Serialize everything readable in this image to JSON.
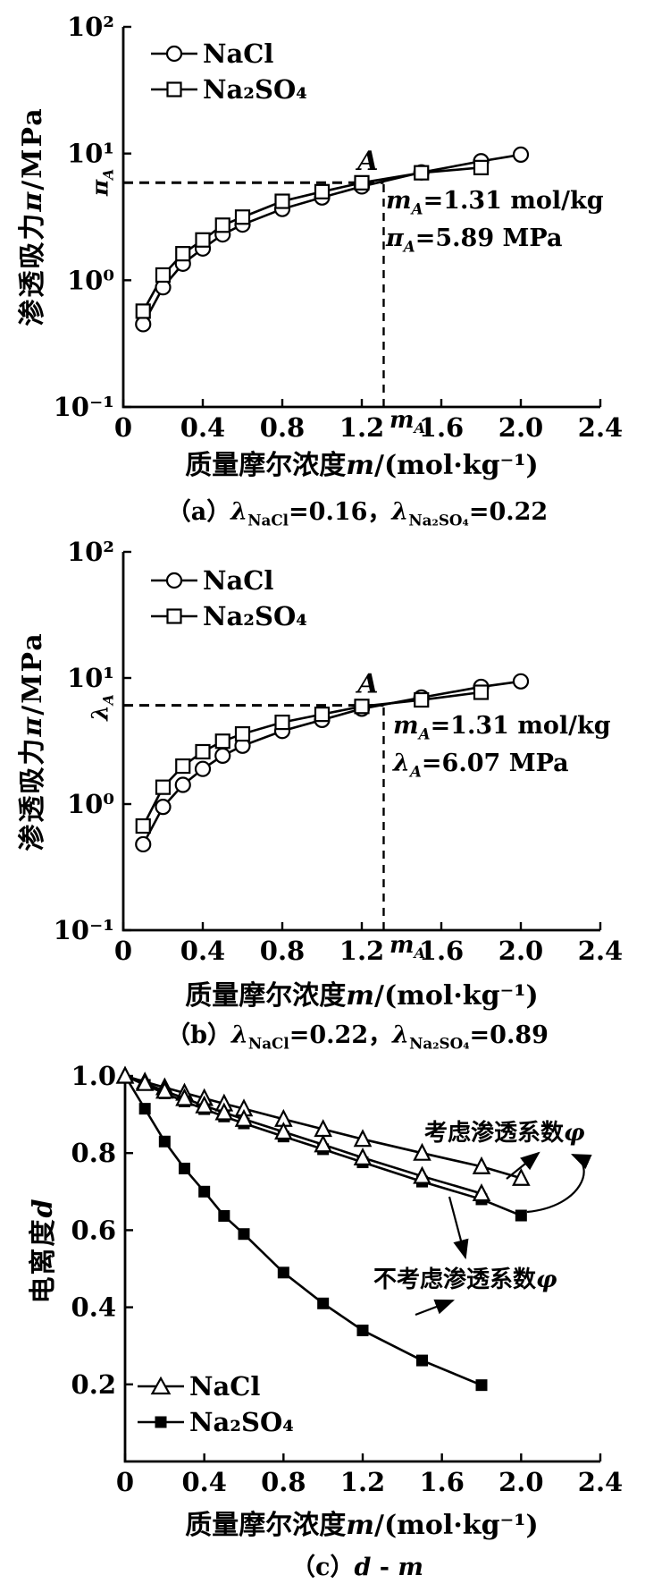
{
  "figure": {
    "background": "#ffffff",
    "ink": "#000000"
  },
  "chart_data": [
    {
      "type": "line",
      "panel": "a",
      "title": "（a）λNaCl=0.16，λNa₂SO₄=0.22",
      "xlabel": "质量摩尔浓度m/(mol·kg⁻¹)",
      "ylabel": "渗透吸力π/MPa",
      "x_axis": {
        "min": 0,
        "max": 2.4,
        "tick_values": [
          0,
          0.4,
          0.8,
          1.2,
          1.6,
          2.0,
          2.4
        ],
        "ticks": [
          "0",
          "0.4",
          "0.8",
          "1.2",
          "1.6",
          "2.0",
          "2.4"
        ]
      },
      "y_axis": {
        "scale": "log",
        "min": 0.1,
        "max": 100,
        "tick_values": [
          100,
          10,
          1,
          0.1
        ],
        "ticks": [
          "10²",
          "10¹",
          "10⁰",
          "10⁻¹"
        ]
      },
      "legend": [
        "NaCl",
        "Na₂SO₄"
      ],
      "series": [
        {
          "name": "NaCl",
          "marker": "circle",
          "x": [
            0.1,
            0.2,
            0.3,
            0.4,
            0.5,
            0.6,
            0.8,
            1.0,
            1.2,
            1.5,
            1.8,
            2.0
          ],
          "y": [
            0.45,
            0.88,
            1.35,
            1.78,
            2.3,
            2.75,
            3.65,
            4.5,
            5.5,
            7.1,
            8.7,
            9.8
          ]
        },
        {
          "name": "Na₂SO₄",
          "marker": "square-open",
          "x": [
            0.1,
            0.2,
            0.3,
            0.4,
            0.5,
            0.6,
            0.8,
            1.0,
            1.2,
            1.5,
            1.8
          ],
          "y": [
            0.57,
            1.1,
            1.62,
            2.08,
            2.72,
            3.15,
            4.2,
            5.0,
            5.88,
            7.05,
            7.75
          ]
        }
      ],
      "point_A": {
        "label": "A",
        "m": 1.31,
        "value": 5.89,
        "annotation_line1": "mA=1.31 mol/kg",
        "annotation_line2": "πA=5.89 MPa",
        "x_axis_mark": "mA",
        "y_axis_mark": "πA"
      }
    },
    {
      "type": "line",
      "panel": "b",
      "title": "（b）λNaCl=0.22，λNa₂SO₄=0.89",
      "xlabel": "质量摩尔浓度m/(mol·kg⁻¹)",
      "ylabel": "渗透吸力π/MPa",
      "x_axis": {
        "min": 0,
        "max": 2.4,
        "tick_values": [
          0,
          0.4,
          0.8,
          1.2,
          1.6,
          2.0,
          2.4
        ],
        "ticks": [
          "0",
          "0.4",
          "0.8",
          "1.2",
          "1.6",
          "2.0",
          "2.4"
        ]
      },
      "y_axis": {
        "scale": "log",
        "min": 0.1,
        "max": 100,
        "tick_values": [
          100,
          10,
          1,
          0.1
        ],
        "ticks": [
          "10²",
          "10¹",
          "10⁰",
          "10⁻¹"
        ]
      },
      "legend": [
        "NaCl",
        "Na₂SO₄"
      ],
      "series": [
        {
          "name": "NaCl",
          "marker": "circle",
          "x": [
            0.1,
            0.2,
            0.3,
            0.4,
            0.5,
            0.6,
            0.8,
            1.0,
            1.2,
            1.5,
            1.8,
            2.0
          ],
          "y": [
            0.48,
            0.95,
            1.42,
            1.9,
            2.42,
            2.9,
            3.8,
            4.65,
            5.7,
            7.0,
            8.5,
            9.4
          ]
        },
        {
          "name": "Na₂SO₄",
          "marker": "square-open",
          "x": [
            0.1,
            0.2,
            0.3,
            0.4,
            0.5,
            0.6,
            0.8,
            1.0,
            1.2,
            1.5,
            1.8
          ],
          "y": [
            0.67,
            1.36,
            2.0,
            2.6,
            3.15,
            3.6,
            4.45,
            5.15,
            5.95,
            6.7,
            7.7
          ]
        }
      ],
      "point_A": {
        "label": "A",
        "m": 1.31,
        "value": 6.07,
        "annotation_line1": "mA=1.31 mol/kg",
        "annotation_line2": "λA=6.07 MPa",
        "x_axis_mark": "mA",
        "y_axis_mark": "λA"
      }
    },
    {
      "type": "line",
      "panel": "c",
      "title": "（c）d - m",
      "xlabel": "质量摩尔浓度m/(mol·kg⁻¹)",
      "ylabel": "电离度d",
      "x_axis": {
        "min": 0,
        "max": 2.4,
        "tick_values": [
          0,
          0.4,
          0.8,
          1.2,
          1.6,
          2.0,
          2.4
        ],
        "ticks": [
          "0",
          "0.4",
          "0.8",
          "1.2",
          "1.6",
          "2.0",
          "2.4"
        ]
      },
      "y_axis": {
        "scale": "linear",
        "min": 0,
        "max": 1.0,
        "tick_values": [
          1.0,
          0.8,
          0.6,
          0.4,
          0.2
        ],
        "ticks": [
          "1.0",
          "0.8",
          "0.6",
          "0.4",
          "0.2"
        ]
      },
      "legend": [
        "NaCl",
        "Na₂SO₄"
      ],
      "annotations": [
        "考虑渗透系数φ",
        "不考虑渗透系数φ"
      ],
      "series": [
        {
          "name": "NaCl",
          "condition": "考虑渗透系数φ",
          "marker": "triangle",
          "x": [
            0,
            0.1,
            0.2,
            0.3,
            0.4,
            0.5,
            0.6,
            0.8,
            1.0,
            1.2,
            1.5,
            1.8,
            2.0
          ],
          "y": [
            1.0,
            0.985,
            0.97,
            0.956,
            0.942,
            0.928,
            0.915,
            0.888,
            0.862,
            0.836,
            0.8,
            0.765,
            0.735
          ]
        },
        {
          "name": "Na₂SO₄",
          "condition": "考虑渗透系数φ",
          "marker": "square-filled",
          "x": [
            0,
            0.1,
            0.2,
            0.3,
            0.4,
            0.5,
            0.6,
            0.8,
            1.0,
            1.2,
            1.5,
            1.8,
            2.0
          ],
          "y": [
            1.0,
            0.977,
            0.955,
            0.934,
            0.914,
            0.895,
            0.877,
            0.843,
            0.81,
            0.776,
            0.726,
            0.68,
            0.638
          ]
        },
        {
          "name": "NaCl",
          "condition": "不考虑渗透系数φ",
          "marker": "triangle",
          "x": [
            0,
            0.1,
            0.2,
            0.3,
            0.4,
            0.5,
            0.6,
            0.8,
            1.0,
            1.2,
            1.5,
            1.8
          ],
          "y": [
            1.0,
            0.981,
            0.961,
            0.942,
            0.923,
            0.905,
            0.888,
            0.855,
            0.822,
            0.788,
            0.74,
            0.695
          ]
        },
        {
          "name": "Na₂SO₄",
          "condition": "不考虑渗透系数φ",
          "marker": "square-filled",
          "x": [
            0,
            0.1,
            0.2,
            0.3,
            0.4,
            0.5,
            0.6,
            0.8,
            1.0,
            1.2,
            1.5,
            1.8
          ],
          "y": [
            1.0,
            0.915,
            0.83,
            0.76,
            0.7,
            0.637,
            0.59,
            0.49,
            0.41,
            0.34,
            0.262,
            0.198
          ]
        }
      ]
    }
  ],
  "text": {
    "panel_a": {
      "ylabel_cn": "渗透吸力",
      "ylabel_sym": "π",
      "ylabel_unit": "/MPa",
      "dash_sym": "π",
      "dash_sub": "A",
      "ann_l1_sym": "m",
      "ann_l1_sub": "A",
      "ann_l1_rest": "=1.31 mol/kg",
      "ann_l2_sym": "π",
      "ann_l2_sub": "A",
      "ann_l2_rest": "=5.89 MPa",
      "ma_sym": "m",
      "ma_sub": "A",
      "xlabel_cn": "质量摩尔浓度",
      "xlabel_sym": "m",
      "xlabel_unit": "/(mol·kg⁻¹)",
      "cap_p1": "（a）",
      "cap_lam1": "λ",
      "cap_sub1": "NaCl",
      "cap_eq1": "=0.16，",
      "cap_lam2": "λ",
      "cap_sub2": "Na₂SO₄",
      "cap_eq2": "=0.22"
    },
    "panel_b": {
      "ylabel_cn": "渗透吸力",
      "ylabel_sym": "π",
      "ylabel_unit": "/MPa",
      "dash_sym": "λ",
      "dash_sub": "A",
      "ann_l1_sym": "m",
      "ann_l1_sub": "A",
      "ann_l1_rest": "=1.31 mol/kg",
      "ann_l2_sym": "λ",
      "ann_l2_sub": "A",
      "ann_l2_rest": "=6.07 MPa",
      "ma_sym": "m",
      "ma_sub": "A",
      "xlabel_cn": "质量摩尔浓度",
      "xlabel_sym": "m",
      "xlabel_unit": "/(mol·kg⁻¹)",
      "cap_p1": "（b）",
      "cap_lam1": "λ",
      "cap_sub1": "NaCl",
      "cap_eq1": "=0.22，",
      "cap_lam2": "λ",
      "cap_sub2": "Na₂SO₄",
      "cap_eq2": "=0.89"
    },
    "panel_c": {
      "ylabel_cn": "电离度",
      "ylabel_sym": "d",
      "xlabel_cn": "质量摩尔浓度",
      "xlabel_sym": "m",
      "xlabel_unit": "/(mol·kg⁻¹)",
      "ann1_cn": "考虑渗透系数",
      "ann1_sym": "φ",
      "ann2_cn": "不考虑渗透系数",
      "ann2_sym": "φ",
      "cap_p1": "（c）",
      "cap_d": "d",
      "cap_dash": " - ",
      "cap_m": "m"
    }
  }
}
